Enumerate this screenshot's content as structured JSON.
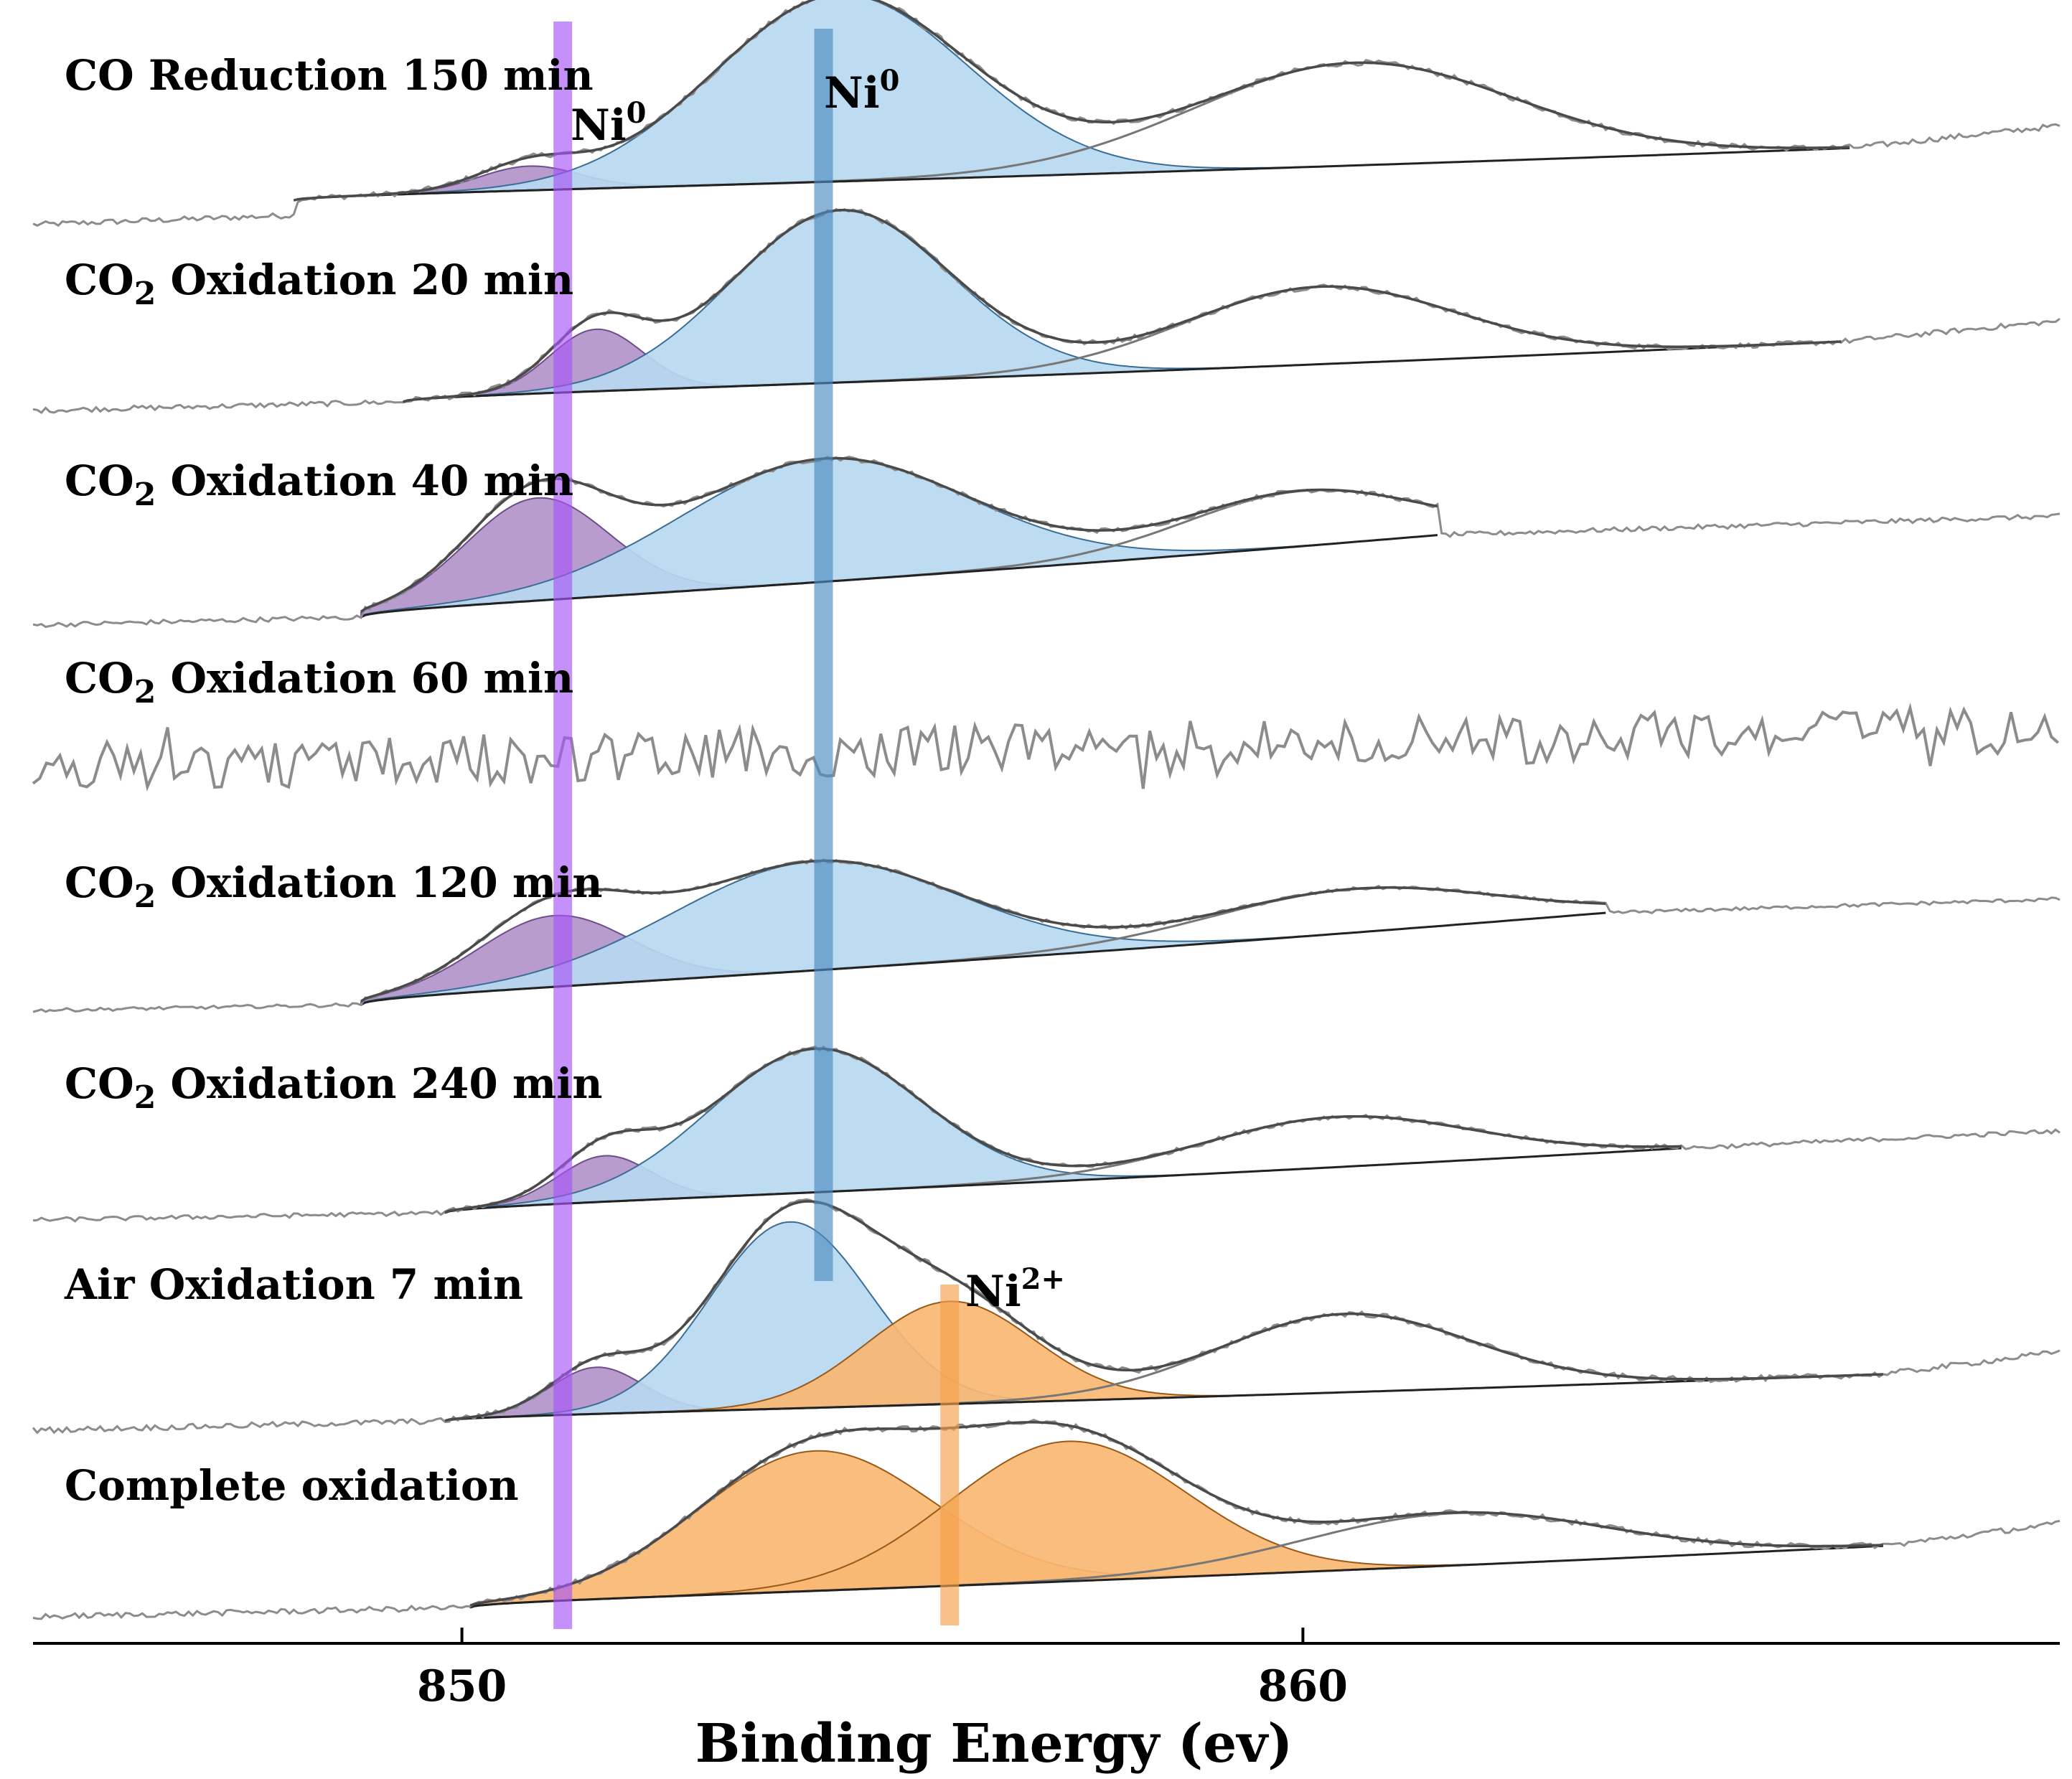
{
  "chart_data": {
    "type": "line",
    "title": "",
    "xlabel": "Binding Energy (ev)",
    "ylabel": "",
    "xlim": [
      844.9,
      869.0
    ],
    "xticks": [
      850,
      860
    ],
    "tick_labels": [
      "850",
      "860"
    ],
    "peak_markers": [
      {
        "label": "Ni",
        "sup": "0",
        "x": 851.2,
        "color": "#a855f7",
        "show_label": true
      },
      {
        "label": "Ni",
        "sup": "0",
        "x": 854.3,
        "color": "#4a8cc2",
        "show_label": true
      },
      {
        "label": "Ni",
        "sup": "2+",
        "x": 855.8,
        "color": "#f5a04a",
        "show_label": true
      }
    ],
    "colors": {
      "purple_fill": "#b294c9",
      "blue_fill": "#b7d8f0",
      "orange_fill": "#f9b773",
      "raw_line": "#8c8c8c",
      "envelope": "#4a4a4a"
    },
    "series": [
      {
        "name": "CO Reduction 150 min",
        "label_main": "CO Reduction 150 min",
        "label_sub": "",
        "label_rest": "",
        "fit_range": [
          848.0,
          866.5
        ],
        "baseline": [
          0.08,
          0.36
        ],
        "components": [
          {
            "color": "purple",
            "center": 850.8,
            "amp": 0.13,
            "sigma": 0.6
          },
          {
            "color": "blue",
            "center": 854.5,
            "amp": 1.0,
            "sigma": 1.5
          },
          {
            "color": "none",
            "center": 860.6,
            "amp": 0.55,
            "sigma": 1.9
          }
        ]
      },
      {
        "name": "CO2 Oxidation 20 min",
        "label_main": "CO",
        "label_sub": "2",
        "label_rest": " Oxidation 20 min",
        "fit_range": [
          849.3,
          866.4
        ],
        "baseline": [
          0.0,
          0.35
        ],
        "components": [
          {
            "color": "purple",
            "center": 851.6,
            "amp": 0.36,
            "sigma": 0.55
          },
          {
            "color": "blue",
            "center": 854.5,
            "amp": 1.0,
            "sigma": 1.3
          },
          {
            "color": "none",
            "center": 860.2,
            "amp": 0.45,
            "sigma": 1.6
          }
        ]
      },
      {
        "name": "CO2 Oxidation 40 min",
        "label_main": "CO",
        "label_sub": "2",
        "label_rest": " Oxidation 40 min",
        "fit_range": [
          848.8,
          861.6
        ],
        "baseline": [
          0.0,
          0.52
        ],
        "components": [
          {
            "color": "purple",
            "center": 850.9,
            "amp": 0.65,
            "sigma": 0.85
          },
          {
            "color": "blue",
            "center": 854.3,
            "amp": 0.78,
            "sigma": 1.7
          },
          {
            "color": "none",
            "center": 860.0,
            "amp": 0.35,
            "sigma": 1.4
          }
        ]
      },
      {
        "name": "CO2 Oxidation 60 min",
        "label_main": "CO",
        "label_sub": "2",
        "label_rest": " Oxidation 60 min",
        "fit_range": null,
        "baseline": [
          0.0,
          0.0
        ],
        "components": []
      },
      {
        "name": "CO2 Oxidation 120 min",
        "label_main": "CO",
        "label_sub": "2",
        "label_rest": " Oxidation 120 min",
        "fit_range": [
          848.8,
          863.6
        ],
        "baseline": [
          0.0,
          0.8
        ],
        "components": [
          {
            "color": "purple",
            "center": 851.1,
            "amp": 0.62,
            "sigma": 0.9
          },
          {
            "color": "blue",
            "center": 854.2,
            "amp": 0.95,
            "sigma": 1.7
          },
          {
            "color": "none",
            "center": 860.6,
            "amp": 0.38,
            "sigma": 1.7
          }
        ]
      },
      {
        "name": "CO2 Oxidation 240 min",
        "label_main": "CO",
        "label_sub": "2",
        "label_rest": " Oxidation 240 min",
        "fit_range": [
          849.8,
          864.5
        ],
        "baseline": [
          0.0,
          0.45
        ],
        "components": [
          {
            "color": "purple",
            "center": 851.7,
            "amp": 0.32,
            "sigma": 0.55
          },
          {
            "color": "blue",
            "center": 854.2,
            "amp": 1.0,
            "sigma": 1.25
          },
          {
            "color": "none",
            "center": 860.4,
            "amp": 0.35,
            "sigma": 1.6
          }
        ]
      },
      {
        "name": "Air Oxidation 7 min",
        "label_main": "Air Oxidation 7 min",
        "label_sub": "",
        "label_rest": "",
        "fit_range": [
          849.8,
          866.9
        ],
        "baseline": [
          0.0,
          0.25
        ],
        "components": [
          {
            "color": "purple",
            "center": 851.6,
            "amp": 0.25,
            "sigma": 0.55
          },
          {
            "color": "blue",
            "center": 853.9,
            "amp": 1.0,
            "sigma": 0.95
          },
          {
            "color": "orange",
            "center": 855.8,
            "amp": 0.55,
            "sigma": 1.0
          },
          {
            "color": "none",
            "center": 860.5,
            "amp": 0.42,
            "sigma": 1.5
          }
        ]
      },
      {
        "name": "Complete oxidation",
        "label_main": "Complete oxidation",
        "label_sub": "",
        "label_rest": "",
        "fit_range": [
          850.1,
          866.9
        ],
        "baseline": [
          0.0,
          0.33
        ],
        "components": [
          {
            "color": "orange",
            "center": 854.2,
            "amp": 0.75,
            "sigma": 1.4
          },
          {
            "color": "orange",
            "center": 857.2,
            "amp": 0.75,
            "sigma": 1.4
          },
          {
            "color": "none",
            "center": 861.8,
            "amp": 0.28,
            "sigma": 1.8
          }
        ]
      }
    ]
  }
}
